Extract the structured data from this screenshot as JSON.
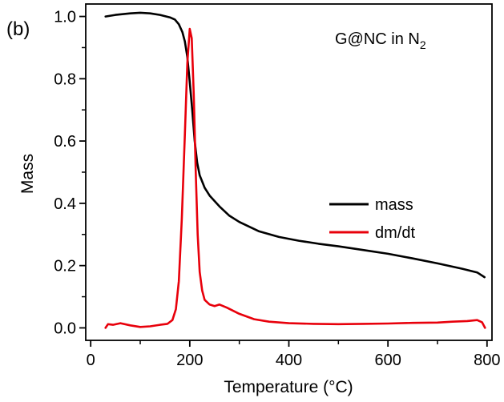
{
  "chart_data": {
    "type": "line",
    "panel_label": "(b)",
    "annotation": {
      "text": "G@NC in N",
      "subscript": "2"
    },
    "xlabel": "Temperature (°C)",
    "ylabel": "Mass",
    "xlim": [
      -10,
      810
    ],
    "ylim": [
      -0.04,
      1.04
    ],
    "xticks": [
      0,
      200,
      400,
      600,
      800
    ],
    "yticks": [
      0.0,
      0.2,
      0.4,
      0.6,
      0.8,
      1.0
    ],
    "xtick_labels": [
      "0",
      "200",
      "400",
      "600",
      "800"
    ],
    "ytick_labels": [
      "0.0",
      "0.2",
      "0.4",
      "0.6",
      "0.8",
      "1.0"
    ],
    "legend": {
      "position": "center-right",
      "entries": [
        "mass",
        "dm/dt"
      ]
    },
    "series": [
      {
        "name": "mass",
        "color": "#000000",
        "x": [
          30,
          50,
          80,
          100,
          120,
          140,
          160,
          170,
          178,
          185,
          190,
          195,
          200,
          205,
          210,
          215,
          220,
          230,
          240,
          260,
          280,
          300,
          340,
          380,
          420,
          460,
          500,
          550,
          600,
          650,
          700,
          750,
          780,
          795
        ],
        "y": [
          1.0,
          1.005,
          1.01,
          1.012,
          1.01,
          1.005,
          0.997,
          0.99,
          0.975,
          0.95,
          0.92,
          0.87,
          0.79,
          0.7,
          0.6,
          0.53,
          0.49,
          0.45,
          0.425,
          0.39,
          0.36,
          0.34,
          0.31,
          0.292,
          0.28,
          0.27,
          0.262,
          0.25,
          0.238,
          0.223,
          0.207,
          0.19,
          0.178,
          0.163
        ]
      },
      {
        "name": "dm/dt",
        "color": "#e8000b",
        "x": [
          30,
          35,
          45,
          60,
          80,
          100,
          120,
          140,
          155,
          165,
          172,
          178,
          184,
          190,
          195,
          200,
          204,
          208,
          212,
          216,
          220,
          225,
          230,
          240,
          250,
          260,
          275,
          300,
          330,
          360,
          400,
          450,
          500,
          550,
          600,
          650,
          700,
          730,
          760,
          780,
          790,
          796
        ],
        "y": [
          0.0,
          0.012,
          0.01,
          0.015,
          0.008,
          0.003,
          0.005,
          0.01,
          0.013,
          0.025,
          0.06,
          0.15,
          0.35,
          0.62,
          0.85,
          0.96,
          0.93,
          0.75,
          0.5,
          0.3,
          0.18,
          0.12,
          0.09,
          0.075,
          0.07,
          0.075,
          0.065,
          0.045,
          0.028,
          0.02,
          0.015,
          0.013,
          0.012,
          0.013,
          0.014,
          0.016,
          0.017,
          0.02,
          0.022,
          0.025,
          0.018,
          0.0
        ]
      }
    ]
  }
}
